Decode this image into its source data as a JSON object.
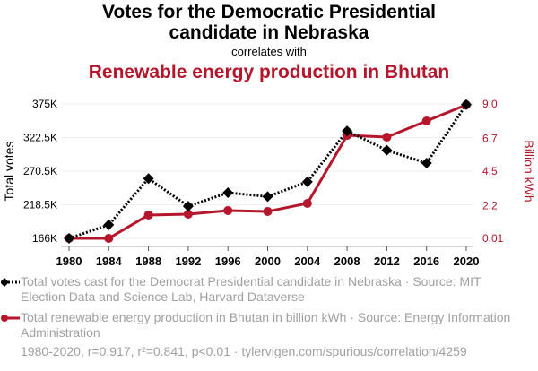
{
  "header": {
    "title_line1": "Votes for the Democratic Presidential",
    "title_line2": "candidate in Nebraska",
    "connector": "correlates with",
    "subtitle": "Renewable energy production in Bhutan"
  },
  "legend": {
    "series1": "Total votes cast for the Democrat Presidential candidate in Nebraska · Source: MIT Election Data and Science Lab, Harvard Dataverse",
    "series2": "Total renewable energy production in Bhutan in billion kWh · Source: Energy Information Administration"
  },
  "footer": "1980-2020, r=0.917, r²=0.841, p<0.01 · tylervigen.com/spurious/correlation/4259",
  "colors": {
    "series1": "#000000",
    "series2": "#b5162b",
    "grid": "#eeeeee",
    "axis": "#aaaaaa"
  },
  "chart_data": {
    "type": "line",
    "title": "Votes for the Democratic Presidential candidate in Nebraska correlates with Renewable energy production in Bhutan",
    "xlabel": "",
    "ylabel_left": "Total votes",
    "ylabel_right": "Billion kWh",
    "x": [
      1980,
      1984,
      1988,
      1992,
      1996,
      2000,
      2004,
      2008,
      2012,
      2016,
      2020
    ],
    "x_tick_labels": [
      "1980",
      "1984",
      "1988",
      "1992",
      "1996",
      "2000",
      "2004",
      "2008",
      "2012",
      "2016",
      "2020"
    ],
    "y_left_ticks": [
      166,
      218.5,
      270.5,
      322.5,
      375
    ],
    "y_left_tick_labels": [
      "166K",
      "218.5K",
      "270.5K",
      "322.5K",
      "375K"
    ],
    "y_left_range": [
      166,
      375
    ],
    "y_right_ticks": [
      0.01,
      2.2,
      4.5,
      6.7,
      9.0
    ],
    "y_right_tick_labels": [
      "0.01",
      "2.2",
      "4.5",
      "6.7",
      "9.0"
    ],
    "y_right_range": [
      0.01,
      9.0
    ],
    "grid": true,
    "legend_position": "bottom",
    "series": [
      {
        "name": "Total votes cast for the Democrat Presidential candidate in Nebraska",
        "axis": "left",
        "unit": "thousand votes",
        "style": "dotted",
        "marker": "diamond",
        "values": [
          166,
          187,
          259,
          216,
          237,
          231,
          254,
          333,
          303,
          283,
          374
        ]
      },
      {
        "name": "Total renewable energy production in Bhutan in billion kWh",
        "axis": "right",
        "unit": "billion kWh",
        "style": "solid",
        "marker": "circle",
        "values": [
          0.01,
          0.01,
          1.57,
          1.63,
          1.87,
          1.81,
          2.35,
          6.9,
          6.78,
          7.86,
          8.94
        ]
      }
    ]
  }
}
